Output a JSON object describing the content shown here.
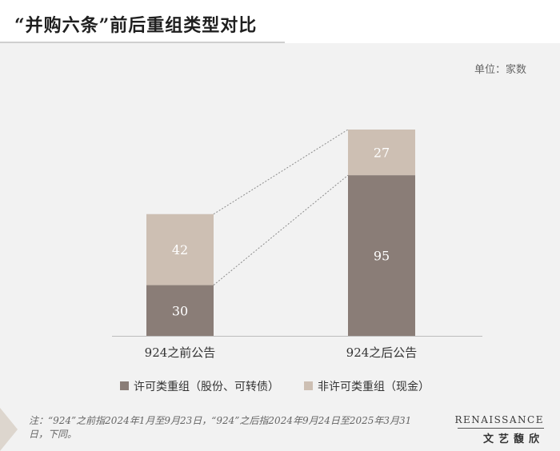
{
  "header": {
    "title": "“并购六条”前后重组类型对比"
  },
  "unit_label": "单位：家数",
  "colors": {
    "dark": "#8a7d77",
    "light": "#cdbfb3",
    "connector": "#8c8c8c"
  },
  "chart_data": {
    "type": "bar",
    "stacked": true,
    "categories": [
      "924之前公告",
      "924之后公告"
    ],
    "series": [
      {
        "name": "许可类重组（股份、可转债）",
        "values": [
          30,
          95
        ],
        "color": "#8a7d77"
      },
      {
        "name": "非许可类重组（现金）",
        "values": [
          42,
          27
        ],
        "color": "#cdbfb3"
      }
    ],
    "ylim": [
      0,
      122
    ],
    "grid": false,
    "legend": "bottom"
  },
  "footer": {
    "note": "注：“924”之前指2024年1月至9月23日，“924”之后指2024年9月24日至2025年3月31日，下同。",
    "logo_en": "RENAISSANCE",
    "logo_cn": "文艺馥欣"
  }
}
